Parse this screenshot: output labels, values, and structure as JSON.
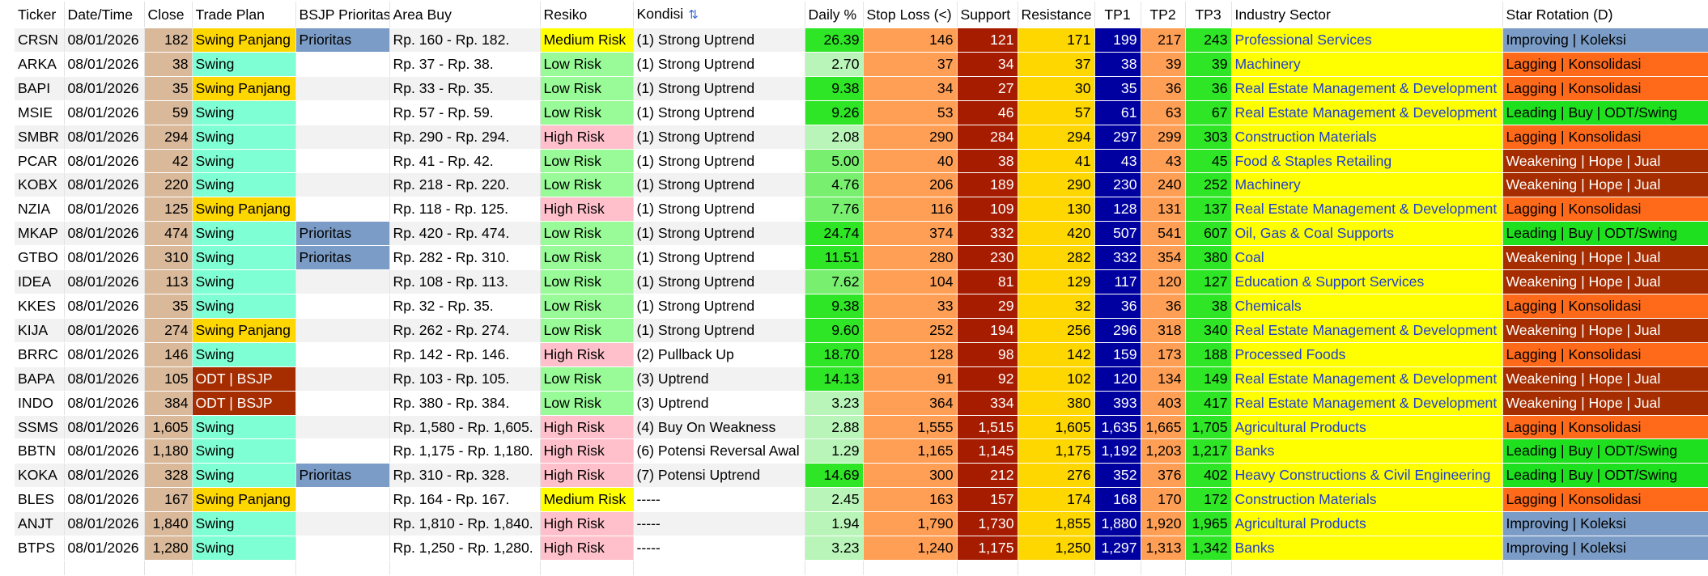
{
  "columns": {
    "ticker": "Ticker",
    "date": "Date/Time",
    "close": "Close",
    "trade_plan": "Trade Plan",
    "bsjp": "BSJP Prioritas",
    "area_buy": "Area Buy",
    "resiko": "Resiko",
    "kondisi": "Kondisi",
    "daily": "Daily %",
    "stop_loss": "Stop Loss (<)",
    "support": "Support",
    "resistance": "Resistance",
    "tp1": "TP1",
    "tp2": "TP2",
    "tp3": "TP3",
    "industry": "Industry Sector",
    "star": "Star Rotation (D)"
  },
  "icons": {
    "kondisi_sort": "sort-icon"
  },
  "colors": {
    "close_bg": "#d9b99a",
    "swing_panjang": "#ffd700",
    "swing": "#7fffd4",
    "odt_bsjp": "#a62d00",
    "prioritas": "#7a9cc6",
    "medium_risk": "#ffff00",
    "low_risk": "#98fb98",
    "high_risk": "#ffc0cb",
    "stop_loss": "#ff9f55",
    "support": "#a61c00",
    "resistance": "#ffd700",
    "tp1": "#0000a0",
    "tp2": "#ff9f55",
    "tp3": "#2ee626",
    "industry": "#ffff00",
    "industry_text": "#1f3fd1",
    "improving": "#7a9cc6",
    "lagging": "#ff6a1a",
    "leading": "#1fe01f",
    "weakening": "#a62d00",
    "daily_high": "#2ee626",
    "daily_low": "#b9f5b9"
  },
  "rows": [
    {
      "ticker": "CRSN",
      "date": "08/01/2026",
      "close": "182",
      "trade_plan": "Swing Panjang",
      "bsjp": "Prioritas",
      "area_buy": "Rp. 160 - Rp. 182.",
      "resiko": "Medium Risk",
      "kondisi": "(1) Strong Uptrend",
      "daily": "26.39",
      "stop_loss": "146",
      "support": "121",
      "resistance": "171",
      "tp1": "199",
      "tp2": "217",
      "tp3": "243",
      "industry": "Professional Services",
      "star": "Improving | Koleksi"
    },
    {
      "ticker": "ARKA",
      "date": "08/01/2026",
      "close": "38",
      "trade_plan": "Swing",
      "bsjp": "",
      "area_buy": "Rp. 37 - Rp. 38.",
      "resiko": "Low Risk",
      "kondisi": "(1) Strong Uptrend",
      "daily": "2.70",
      "stop_loss": "37",
      "support": "34",
      "resistance": "37",
      "tp1": "38",
      "tp2": "39",
      "tp3": "39",
      "industry": "Machinery",
      "star": "Lagging | Konsolidasi"
    },
    {
      "ticker": "BAPI",
      "date": "08/01/2026",
      "close": "35",
      "trade_plan": "Swing Panjang",
      "bsjp": "",
      "area_buy": "Rp. 33 - Rp. 35.",
      "resiko": "Low Risk",
      "kondisi": "(1) Strong Uptrend",
      "daily": "9.38",
      "stop_loss": "34",
      "support": "27",
      "resistance": "30",
      "tp1": "35",
      "tp2": "36",
      "tp3": "36",
      "industry": "Real Estate Management & Development",
      "star": "Lagging | Konsolidasi"
    },
    {
      "ticker": "MSIE",
      "date": "08/01/2026",
      "close": "59",
      "trade_plan": "Swing",
      "bsjp": "",
      "area_buy": "Rp. 57 - Rp. 59.",
      "resiko": "Low Risk",
      "kondisi": "(1) Strong Uptrend",
      "daily": "9.26",
      "stop_loss": "53",
      "support": "46",
      "resistance": "57",
      "tp1": "61",
      "tp2": "63",
      "tp3": "67",
      "industry": "Real Estate Management & Development",
      "star": "Leading | Buy | ODT/Swing"
    },
    {
      "ticker": "SMBR",
      "date": "08/01/2026",
      "close": "294",
      "trade_plan": "Swing",
      "bsjp": "",
      "area_buy": "Rp. 290 - Rp. 294.",
      "resiko": "High Risk",
      "kondisi": "(1) Strong Uptrend",
      "daily": "2.08",
      "stop_loss": "290",
      "support": "284",
      "resistance": "294",
      "tp1": "297",
      "tp2": "299",
      "tp3": "303",
      "industry": "Construction Materials",
      "star": "Lagging | Konsolidasi"
    },
    {
      "ticker": "PCAR",
      "date": "08/01/2026",
      "close": "42",
      "trade_plan": "Swing",
      "bsjp": "",
      "area_buy": "Rp. 41 - Rp. 42.",
      "resiko": "Low Risk",
      "kondisi": "(1) Strong Uptrend",
      "daily": "5.00",
      "stop_loss": "40",
      "support": "38",
      "resistance": "41",
      "tp1": "43",
      "tp2": "43",
      "tp3": "45",
      "industry": "Food & Staples Retailing",
      "star": "Weakening | Hope | Jual"
    },
    {
      "ticker": "KOBX",
      "date": "08/01/2026",
      "close": "220",
      "trade_plan": "Swing",
      "bsjp": "",
      "area_buy": "Rp. 218 - Rp. 220.",
      "resiko": "Low Risk",
      "kondisi": "(1) Strong Uptrend",
      "daily": "4.76",
      "stop_loss": "206",
      "support": "189",
      "resistance": "290",
      "tp1": "230",
      "tp2": "240",
      "tp3": "252",
      "industry": "Machinery",
      "star": "Weakening | Hope | Jual"
    },
    {
      "ticker": "NZIA",
      "date": "08/01/2026",
      "close": "125",
      "trade_plan": "Swing Panjang",
      "bsjp": "",
      "area_buy": "Rp. 118 - Rp. 125.",
      "resiko": "High Risk",
      "kondisi": "(1) Strong Uptrend",
      "daily": "7.76",
      "stop_loss": "116",
      "support": "109",
      "resistance": "130",
      "tp1": "128",
      "tp2": "131",
      "tp3": "137",
      "industry": "Real Estate Management & Development",
      "star": "Lagging | Konsolidasi"
    },
    {
      "ticker": "MKAP",
      "date": "08/01/2026",
      "close": "474",
      "trade_plan": "Swing",
      "bsjp": "Prioritas",
      "area_buy": "Rp. 420 - Rp. 474.",
      "resiko": "Low Risk",
      "kondisi": "(1) Strong Uptrend",
      "daily": "24.74",
      "stop_loss": "374",
      "support": "332",
      "resistance": "420",
      "tp1": "507",
      "tp2": "541",
      "tp3": "607",
      "industry": "Oil, Gas & Coal Supports",
      "star": "Leading | Buy | ODT/Swing"
    },
    {
      "ticker": "GTBO",
      "date": "08/01/2026",
      "close": "310",
      "trade_plan": "Swing",
      "bsjp": "Prioritas",
      "area_buy": "Rp. 282 - Rp. 310.",
      "resiko": "Low Risk",
      "kondisi": "(1) Strong Uptrend",
      "daily": "11.51",
      "stop_loss": "280",
      "support": "230",
      "resistance": "282",
      "tp1": "332",
      "tp2": "354",
      "tp3": "380",
      "industry": "Coal",
      "star": "Weakening | Hope | Jual"
    },
    {
      "ticker": "IDEA",
      "date": "08/01/2026",
      "close": "113",
      "trade_plan": "Swing",
      "bsjp": "",
      "area_buy": "Rp. 108 - Rp. 113.",
      "resiko": "Low Risk",
      "kondisi": "(1) Strong Uptrend",
      "daily": "7.62",
      "stop_loss": "104",
      "support": "81",
      "resistance": "129",
      "tp1": "117",
      "tp2": "120",
      "tp3": "127",
      "industry": "Education & Support Services",
      "star": "Weakening | Hope | Jual"
    },
    {
      "ticker": "KKES",
      "date": "08/01/2026",
      "close": "35",
      "trade_plan": "Swing",
      "bsjp": "",
      "area_buy": "Rp. 32 - Rp. 35.",
      "resiko": "Low Risk",
      "kondisi": "(1) Strong Uptrend",
      "daily": "9.38",
      "stop_loss": "33",
      "support": "29",
      "resistance": "32",
      "tp1": "36",
      "tp2": "36",
      "tp3": "38",
      "industry": "Chemicals",
      "star": "Lagging | Konsolidasi"
    },
    {
      "ticker": "KIJA",
      "date": "08/01/2026",
      "close": "274",
      "trade_plan": "Swing Panjang",
      "bsjp": "",
      "area_buy": "Rp. 262 - Rp. 274.",
      "resiko": "Low Risk",
      "kondisi": "(1) Strong Uptrend",
      "daily": "9.60",
      "stop_loss": "252",
      "support": "194",
      "resistance": "256",
      "tp1": "296",
      "tp2": "318",
      "tp3": "340",
      "industry": "Real Estate Management & Development",
      "star": "Weakening | Hope | Jual"
    },
    {
      "ticker": "BRRC",
      "date": "08/01/2026",
      "close": "146",
      "trade_plan": "Swing",
      "bsjp": "",
      "area_buy": "Rp. 142 - Rp. 146.",
      "resiko": "High Risk",
      "kondisi": "(2) Pullback Up",
      "daily": "18.70",
      "stop_loss": "128",
      "support": "98",
      "resistance": "142",
      "tp1": "159",
      "tp2": "173",
      "tp3": "188",
      "industry": "Processed Foods",
      "star": "Lagging | Konsolidasi"
    },
    {
      "ticker": "BAPA",
      "date": "08/01/2026",
      "close": "105",
      "trade_plan": "ODT | BSJP",
      "bsjp": "",
      "area_buy": "Rp. 103 - Rp. 105.",
      "resiko": "Low Risk",
      "kondisi": "(3) Uptrend",
      "daily": "14.13",
      "stop_loss": "91",
      "support": "92",
      "resistance": "102",
      "tp1": "120",
      "tp2": "134",
      "tp3": "149",
      "industry": "Real Estate Management & Development",
      "star": "Weakening | Hope | Jual"
    },
    {
      "ticker": "INDO",
      "date": "08/01/2026",
      "close": "384",
      "trade_plan": "ODT | BSJP",
      "bsjp": "",
      "area_buy": "Rp. 380 - Rp. 384.",
      "resiko": "Low Risk",
      "kondisi": "(3) Uptrend",
      "daily": "3.23",
      "stop_loss": "364",
      "support": "334",
      "resistance": "380",
      "tp1": "393",
      "tp2": "403",
      "tp3": "417",
      "industry": "Real Estate Management & Development",
      "star": "Weakening | Hope | Jual"
    },
    {
      "ticker": "SSMS",
      "date": "08/01/2026",
      "close": "1,605",
      "trade_plan": "Swing",
      "bsjp": "",
      "area_buy": "Rp. 1,580 - Rp. 1,605.",
      "resiko": "High Risk",
      "kondisi": "(4) Buy On Weakness",
      "daily": "2.88",
      "stop_loss": "1,555",
      "support": "1,515",
      "resistance": "1,605",
      "tp1": "1,635",
      "tp2": "1,665",
      "tp3": "1,705",
      "industry": "Agricultural Products",
      "star": "Lagging | Konsolidasi"
    },
    {
      "ticker": "BBTN",
      "date": "08/01/2026",
      "close": "1,180",
      "trade_plan": "Swing",
      "bsjp": "",
      "area_buy": "Rp. 1,175 - Rp. 1,180.",
      "resiko": "High Risk",
      "kondisi": "(6) Potensi Reversal Awal",
      "daily": "1.29",
      "stop_loss": "1,165",
      "support": "1,145",
      "resistance": "1,175",
      "tp1": "1,192",
      "tp2": "1,203",
      "tp3": "1,217",
      "industry": "Banks",
      "star": "Leading | Buy | ODT/Swing"
    },
    {
      "ticker": "KOKA",
      "date": "08/01/2026",
      "close": "328",
      "trade_plan": "Swing",
      "bsjp": "Prioritas",
      "area_buy": "Rp. 310 - Rp. 328.",
      "resiko": "High Risk",
      "kondisi": "(7) Potensi Uptrend",
      "daily": "14.69",
      "stop_loss": "300",
      "support": "212",
      "resistance": "276",
      "tp1": "352",
      "tp2": "376",
      "tp3": "402",
      "industry": "Heavy Constructions & Civil Engineering",
      "star": "Leading | Buy | ODT/Swing"
    },
    {
      "ticker": "BLES",
      "date": "08/01/2026",
      "close": "167",
      "trade_plan": "Swing Panjang",
      "bsjp": "",
      "area_buy": "Rp. 164 - Rp. 167.",
      "resiko": "Medium Risk",
      "kondisi": "-----",
      "daily": "2.45",
      "stop_loss": "163",
      "support": "157",
      "resistance": "174",
      "tp1": "168",
      "tp2": "170",
      "tp3": "172",
      "industry": "Construction Materials",
      "star": "Lagging | Konsolidasi"
    },
    {
      "ticker": "ANJT",
      "date": "08/01/2026",
      "close": "1,840",
      "trade_plan": "Swing",
      "bsjp": "",
      "area_buy": "Rp. 1,810 - Rp. 1,840.",
      "resiko": "High Risk",
      "kondisi": "-----",
      "daily": "1.94",
      "stop_loss": "1,790",
      "support": "1,730",
      "resistance": "1,855",
      "tp1": "1,880",
      "tp2": "1,920",
      "tp3": "1,965",
      "industry": "Agricultural Products",
      "star": "Improving | Koleksi"
    },
    {
      "ticker": "BTPS",
      "date": "08/01/2026",
      "close": "1,280",
      "trade_plan": "Swing",
      "bsjp": "",
      "area_buy": "Rp. 1,250 - Rp. 1,280.",
      "resiko": "High Risk",
      "kondisi": "-----",
      "daily": "3.23",
      "stop_loss": "1,240",
      "support": "1,175",
      "resistance": "1,250",
      "tp1": "1,297",
      "tp2": "1,313",
      "tp3": "1,342",
      "industry": "Banks",
      "star": "Improving | Koleksi"
    }
  ]
}
